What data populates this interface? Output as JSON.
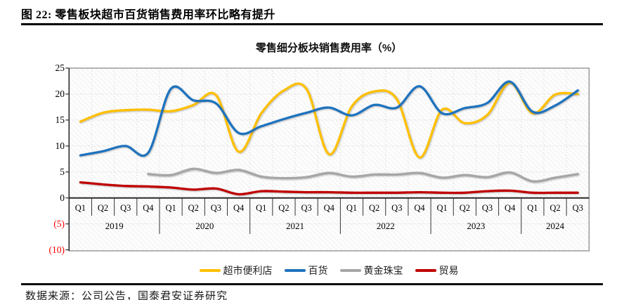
{
  "figure": {
    "title": "图 22:  零售板块超市百货销售费用率环比略有提升"
  },
  "chart_data": {
    "type": "line",
    "title": "零售细分板块销售费用率（%）",
    "ylim": [
      -10,
      25
    ],
    "grid": true,
    "legend_position": "bottom",
    "y_ticks": [
      {
        "label": "25",
        "value": 25,
        "color": "#000000"
      },
      {
        "label": "20",
        "value": 20,
        "color": "#000000"
      },
      {
        "label": "15",
        "value": 15,
        "color": "#000000"
      },
      {
        "label": "10",
        "value": 10,
        "color": "#000000"
      },
      {
        "label": "5",
        "value": 5,
        "color": "#000000"
      },
      {
        "label": "0",
        "value": 0,
        "color": "#000000"
      },
      {
        "label": "(5)",
        "value": -5,
        "color": "#ff0000"
      },
      {
        "label": "(10)",
        "value": -10,
        "color": "#ff0000"
      }
    ],
    "x_quarters": [
      "Q1",
      "Q2",
      "Q3",
      "Q4",
      "Q1",
      "Q2",
      "Q3",
      "Q4",
      "Q1",
      "Q2",
      "Q3",
      "Q4",
      "Q1",
      "Q2",
      "Q3",
      "Q4",
      "Q1",
      "Q2",
      "Q3",
      "Q4",
      "Q1",
      "Q2",
      "Q3"
    ],
    "x_years": [
      {
        "label": "2019",
        "quarters": 4
      },
      {
        "label": "2020",
        "quarters": 4
      },
      {
        "label": "2021",
        "quarters": 4
      },
      {
        "label": "2022",
        "quarters": 4
      },
      {
        "label": "2023",
        "quarters": 4
      },
      {
        "label": "2024",
        "quarters": 3
      }
    ],
    "series": [
      {
        "name": "超市便利店",
        "color": "#FFC000",
        "values": [
          14.7,
          16.4,
          16.9,
          17.0,
          16.7,
          17.9,
          19.8,
          8.9,
          16.3,
          20.7,
          21.0,
          8.4,
          17.6,
          20.5,
          19.0,
          7.8,
          17.0,
          14.4,
          16.0,
          22.2,
          16.3,
          19.9,
          20.0
        ]
      },
      {
        "name": "百货",
        "color": "#1E73BE",
        "values": [
          8.2,
          9.0,
          10.0,
          8.7,
          21.0,
          18.8,
          18.2,
          12.5,
          13.8,
          15.2,
          16.4,
          17.4,
          15.9,
          17.9,
          17.4,
          21.5,
          16.3,
          17.3,
          18.3,
          22.4,
          16.6,
          17.8,
          20.7
        ]
      },
      {
        "name": "黄金珠宝",
        "color": "#A6A6A6",
        "values": [
          null,
          null,
          null,
          4.6,
          4.4,
          5.6,
          4.8,
          5.4,
          4.1,
          3.8,
          4.0,
          4.8,
          4.1,
          4.5,
          4.5,
          4.8,
          3.9,
          4.4,
          4.0,
          4.9,
          3.2,
          3.9,
          4.6
        ]
      },
      {
        "name": "贸易",
        "color": "#C00000",
        "values": [
          3.0,
          2.6,
          2.3,
          2.2,
          2.0,
          1.6,
          1.8,
          0.7,
          1.3,
          1.2,
          1.1,
          1.1,
          1.0,
          1.0,
          1.0,
          1.1,
          1.0,
          1.0,
          1.3,
          1.4,
          1.0,
          1.0,
          1.0
        ]
      }
    ]
  },
  "source": {
    "text": "数据来源：公司公告，国泰君安证券研究"
  }
}
